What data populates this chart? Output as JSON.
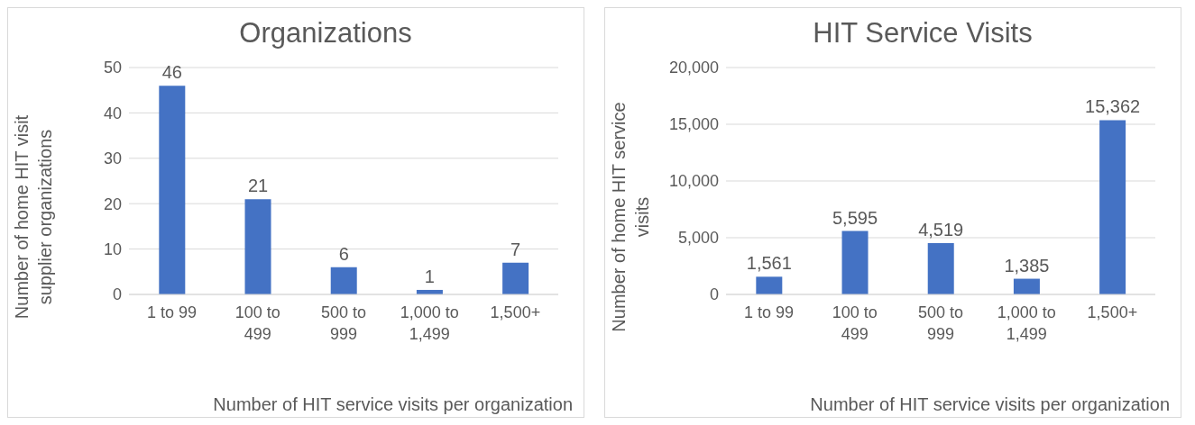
{
  "chart_data": [
    {
      "type": "bar",
      "title": "Organizations",
      "xlabel": "Number of HIT service visits per organization",
      "ylabel": "Number of home HIT visit supplier organizations",
      "categories": [
        "1 to 99",
        "100 to 499",
        "500 to 999",
        "1,000 to 1,499",
        "1,500+"
      ],
      "values": [
        46,
        21,
        6,
        1,
        7
      ],
      "color": "#4472c4",
      "ylim": [
        0,
        50
      ],
      "yticks": [
        0,
        10,
        20,
        30,
        40,
        50
      ],
      "grid": "y",
      "data_labels": true
    },
    {
      "type": "bar",
      "title": "HIT Service Visits",
      "xlabel": "Number of HIT service visits per organization",
      "ylabel": "Number of home HIT service visits",
      "categories": [
        "1 to 99",
        "100 to 499",
        "500 to 999",
        "1,000 to 1,499",
        "1,500+"
      ],
      "values": [
        1561,
        5595,
        4519,
        1385,
        15362
      ],
      "value_labels": [
        "1,561",
        "5,595",
        "4,519",
        "1,385",
        "15,362"
      ],
      "color": "#4472c4",
      "ylim": [
        0,
        20000
      ],
      "yticks": [
        0,
        {
          "value": 5000,
          "label": "5,000"
        },
        {
          "value": 10000,
          "label": "10,000"
        },
        {
          "value": 15000,
          "label": "15,000"
        },
        {
          "value": 20000,
          "label": "20,000"
        }
      ],
      "grid": "y"
    }
  ]
}
